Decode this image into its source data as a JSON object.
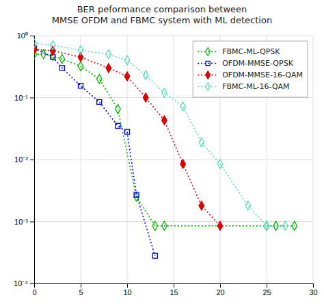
{
  "chart_data": {
    "type": "line",
    "title": "BER peformance comparison between\nMMSE OFDM and FBMC system with ML detection",
    "log": "y",
    "grid": true,
    "legend": "upper right",
    "xlim": [
      0,
      30
    ],
    "xticks": [
      0,
      5,
      10,
      15,
      20,
      25,
      30
    ],
    "ylim": [
      0.0001,
      1
    ],
    "yticks": [
      {
        "value": 0.0001,
        "label": "10⁻⁴"
      },
      {
        "value": 0.001,
        "label": "10⁻³"
      },
      {
        "value": 0.01,
        "label": "10⁻²"
      },
      {
        "value": 0.1,
        "label": "10⁻¹"
      },
      {
        "value": 1,
        "label": "10⁰"
      }
    ],
    "series": [
      {
        "name": "FBMC-ML-QPSK",
        "color": "#00b800",
        "line_style": "dotted",
        "marker": "diamond-open",
        "x": [
          0,
          1,
          2,
          3,
          5,
          7,
          9,
          11,
          13,
          14,
          25,
          26,
          28
        ],
        "values": [
          0.5,
          0.5,
          0.47,
          0.42,
          0.32,
          0.2,
          0.065,
          0.0025,
          0.00085,
          0.00085,
          0.00085,
          0.00085,
          0.00085
        ]
      },
      {
        "name": "OFDM-MMSE-QPSK",
        "color": "#0000ee",
        "line_style": "dotted",
        "marker": "square-open",
        "x": [
          0,
          2,
          3,
          5,
          7,
          9,
          10,
          11,
          13
        ],
        "values": [
          0.62,
          0.45,
          0.3,
          0.155,
          0.085,
          0.035,
          0.028,
          0.0027,
          0.00028
        ]
      },
      {
        "name": "OFDM-MMSE-16-QAM",
        "color": "#dd0000",
        "line_style": "dotted",
        "marker": "diamond",
        "x": [
          0,
          2,
          5,
          8,
          10,
          12,
          14,
          16,
          18,
          20
        ],
        "values": [
          0.6,
          0.57,
          0.45,
          0.3,
          0.22,
          0.1,
          0.043,
          0.0085,
          0.0018,
          0.00085
        ]
      },
      {
        "name": "FBMC-ML-16-QAM",
        "color": "#55ddbb",
        "line_style": "dotted",
        "marker": "diamond-open",
        "x": [
          0,
          2,
          5,
          8,
          10,
          12,
          14,
          16,
          18,
          20,
          23,
          25,
          27
        ],
        "values": [
          0.75,
          0.7,
          0.58,
          0.5,
          0.4,
          0.23,
          0.12,
          0.072,
          0.019,
          0.0085,
          0.0018,
          0.00085,
          0.00085
        ]
      }
    ]
  }
}
